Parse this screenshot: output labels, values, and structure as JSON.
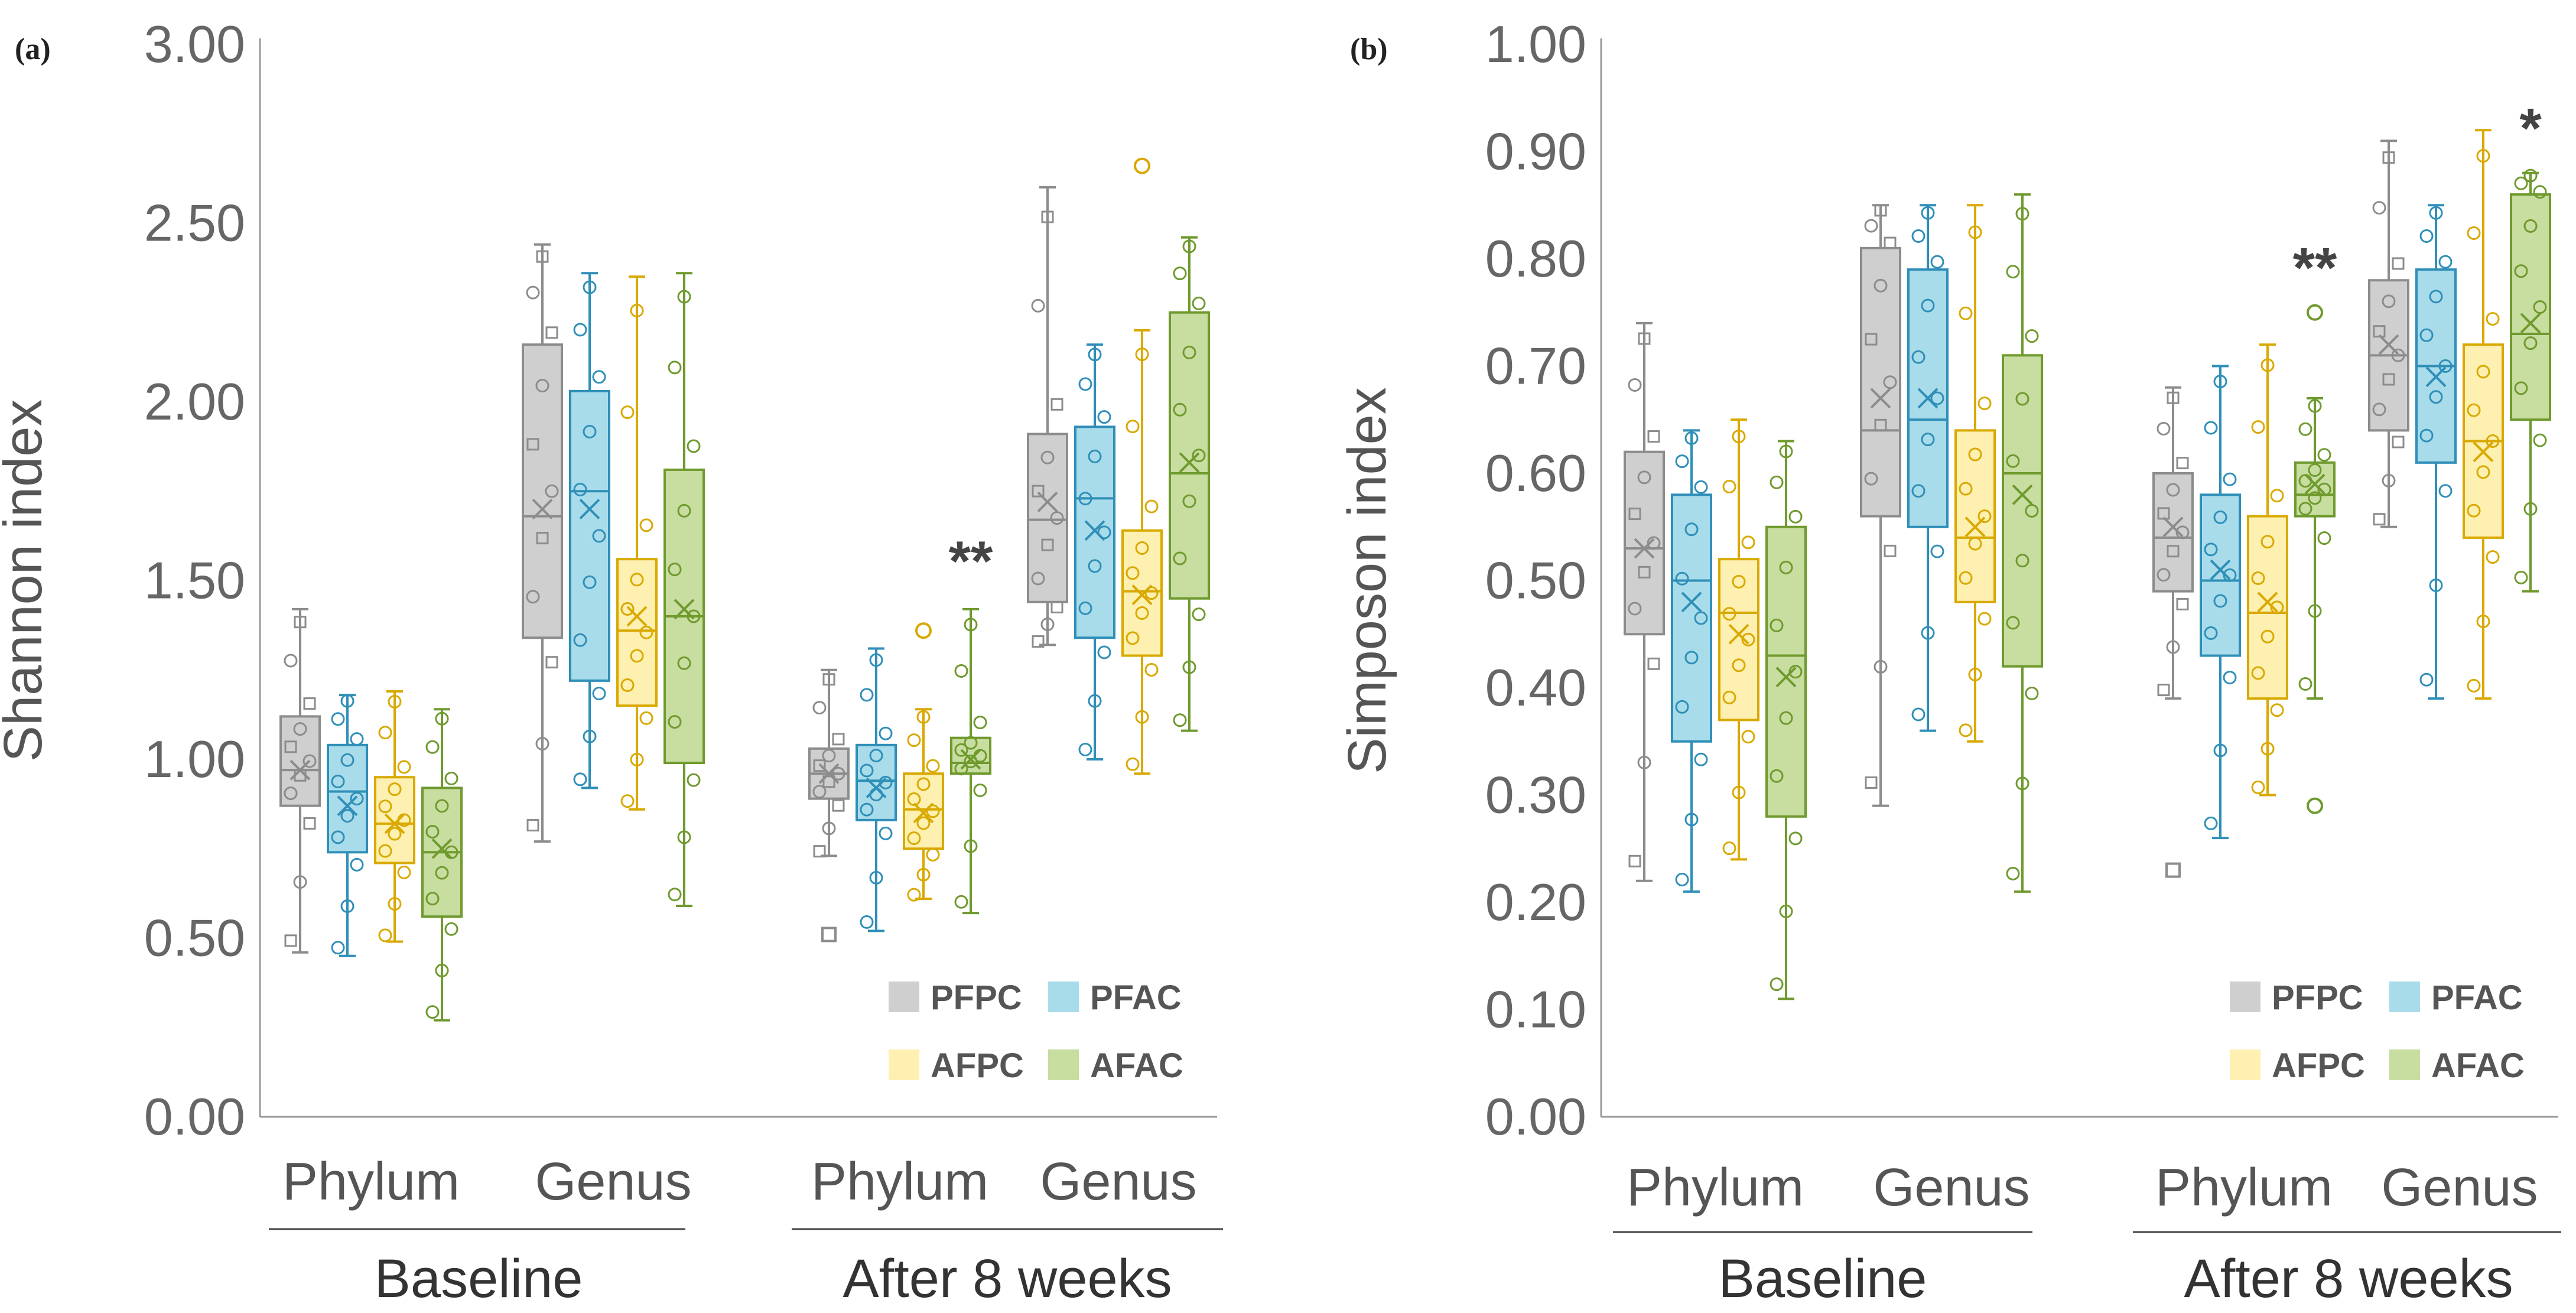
{
  "colors": {
    "PFPC": {
      "fill": "#cfcfcf",
      "stroke": "#8c8c8c"
    },
    "PFAC": {
      "fill": "#a9dcea",
      "stroke": "#2f8fb8"
    },
    "AFPC": {
      "fill": "#fdf0b0",
      "stroke": "#d9a900"
    },
    "AFAC": {
      "fill": "#c8dda0",
      "stroke": "#6f9a2e"
    }
  },
  "chart_data": [
    {
      "panel": "(a)",
      "type": "box",
      "ylabel": "Shannon index",
      "ylim": [
        0,
        3
      ],
      "yticks": [
        "0.00",
        "0.50",
        "1.00",
        "1.50",
        "2.00",
        "2.50",
        "3.00"
      ],
      "series_names": [
        "PFPC",
        "PFAC",
        "AFPC",
        "AFAC"
      ],
      "groups": [
        {
          "label": "Phylum",
          "period": "Baseline",
          "boxes": [
            {
              "min": 0.46,
              "q1": 0.87,
              "median": 0.97,
              "q3": 1.12,
              "max": 1.42,
              "mean": 0.97
            },
            {
              "min": 0.45,
              "q1": 0.74,
              "median": 0.91,
              "q3": 1.04,
              "max": 1.18,
              "mean": 0.87
            },
            {
              "min": 0.49,
              "q1": 0.71,
              "median": 0.82,
              "q3": 0.95,
              "max": 1.19,
              "mean": 0.82
            },
            {
              "min": 0.27,
              "q1": 0.56,
              "median": 0.74,
              "q3": 0.92,
              "max": 1.14,
              "mean": 0.75
            }
          ]
        },
        {
          "label": "Genus",
          "period": "Baseline",
          "boxes": [
            {
              "min": 0.77,
              "q1": 1.34,
              "median": 1.68,
              "q3": 2.16,
              "max": 2.44,
              "mean": 1.7
            },
            {
              "min": 0.92,
              "q1": 1.22,
              "median": 1.75,
              "q3": 2.03,
              "max": 2.36,
              "mean": 1.7
            },
            {
              "min": 0.86,
              "q1": 1.15,
              "median": 1.36,
              "q3": 1.56,
              "max": 2.35,
              "mean": 1.4
            },
            {
              "min": 0.59,
              "q1": 0.99,
              "median": 1.4,
              "q3": 1.81,
              "max": 2.36,
              "mean": 1.42
            }
          ]
        },
        {
          "label": "Phylum",
          "period": "After 8 weeks",
          "boxes": [
            {
              "min": 0.73,
              "q1": 0.89,
              "median": 0.96,
              "q3": 1.03,
              "max": 1.25,
              "mean": 0.96
            },
            {
              "min": 0.52,
              "q1": 0.83,
              "median": 0.94,
              "q3": 1.04,
              "max": 1.31,
              "mean": 0.92
            },
            {
              "min": 0.61,
              "q1": 0.75,
              "median": 0.86,
              "q3": 0.96,
              "max": 1.14,
              "mean": 0.85
            },
            {
              "min": 0.57,
              "q1": 0.96,
              "median": 0.99,
              "q3": 1.06,
              "max": 1.42,
              "mean": 1.0
            }
          ]
        },
        {
          "label": "Genus",
          "period": "After 8 weeks",
          "boxes": [
            {
              "min": 1.32,
              "q1": 1.44,
              "median": 1.67,
              "q3": 1.91,
              "max": 2.6,
              "mean": 1.72
            },
            {
              "min": 1.0,
              "q1": 1.34,
              "median": 1.73,
              "q3": 1.93,
              "max": 2.16,
              "mean": 1.64
            },
            {
              "min": 0.96,
              "q1": 1.29,
              "median": 1.47,
              "q3": 1.64,
              "max": 2.2,
              "mean": 1.46
            },
            {
              "min": 1.08,
              "q1": 1.45,
              "median": 1.8,
              "q3": 2.25,
              "max": 2.46,
              "mean": 1.83
            }
          ]
        }
      ],
      "outliers": [
        {
          "group": 2,
          "series": 0,
          "value": 0.51
        },
        {
          "group": 2,
          "series": 2,
          "value": 1.36
        },
        {
          "group": 3,
          "series": 2,
          "value": 2.66
        }
      ],
      "annotations": [
        {
          "group": 2,
          "series": 3,
          "text": "**",
          "value": 1.55
        }
      ],
      "period_labels": [
        "Baseline",
        "After 8 weeks"
      ],
      "legend": [
        "PFPC",
        "PFAC",
        "AFPC",
        "AFAC"
      ]
    },
    {
      "panel": "(b)",
      "type": "box",
      "ylabel": "Simposon index",
      "ylim": [
        0,
        1
      ],
      "yticks": [
        "0.00",
        "0.10",
        "0.20",
        "0.30",
        "0.40",
        "0.50",
        "0.60",
        "0.70",
        "0.80",
        "0.90",
        "1.00"
      ],
      "series_names": [
        "PFPC",
        "PFAC",
        "AFPC",
        "AFAC"
      ],
      "groups": [
        {
          "label": "Phylum",
          "period": "Baseline",
          "boxes": [
            {
              "min": 0.22,
              "q1": 0.45,
              "median": 0.53,
              "q3": 0.62,
              "max": 0.74,
              "mean": 0.53
            },
            {
              "min": 0.21,
              "q1": 0.35,
              "median": 0.5,
              "q3": 0.58,
              "max": 0.64,
              "mean": 0.48
            },
            {
              "min": 0.24,
              "q1": 0.37,
              "median": 0.47,
              "q3": 0.52,
              "max": 0.65,
              "mean": 0.45
            },
            {
              "min": 0.11,
              "q1": 0.28,
              "median": 0.43,
              "q3": 0.55,
              "max": 0.63,
              "mean": 0.41
            }
          ]
        },
        {
          "label": "Genus",
          "period": "Baseline",
          "boxes": [
            {
              "min": 0.29,
              "q1": 0.56,
              "median": 0.64,
              "q3": 0.81,
              "max": 0.85,
              "mean": 0.67
            },
            {
              "min": 0.36,
              "q1": 0.55,
              "median": 0.65,
              "q3": 0.79,
              "max": 0.85,
              "mean": 0.67
            },
            {
              "min": 0.35,
              "q1": 0.48,
              "median": 0.54,
              "q3": 0.64,
              "max": 0.85,
              "mean": 0.55
            },
            {
              "min": 0.21,
              "q1": 0.42,
              "median": 0.6,
              "q3": 0.71,
              "max": 0.86,
              "mean": 0.58
            }
          ]
        },
        {
          "label": "Phylum",
          "period": "After 8 weeks",
          "boxes": [
            {
              "min": 0.39,
              "q1": 0.49,
              "median": 0.54,
              "q3": 0.6,
              "max": 0.68,
              "mean": 0.55
            },
            {
              "min": 0.26,
              "q1": 0.43,
              "median": 0.5,
              "q3": 0.58,
              "max": 0.7,
              "mean": 0.51
            },
            {
              "min": 0.3,
              "q1": 0.39,
              "median": 0.47,
              "q3": 0.56,
              "max": 0.72,
              "mean": 0.48
            },
            {
              "min": 0.39,
              "q1": 0.56,
              "median": 0.58,
              "q3": 0.61,
              "max": 0.67,
              "mean": 0.59
            }
          ]
        },
        {
          "label": "Genus",
          "period": "After 8 weeks",
          "boxes": [
            {
              "min": 0.55,
              "q1": 0.64,
              "median": 0.71,
              "q3": 0.78,
              "max": 0.91,
              "mean": 0.72
            },
            {
              "min": 0.39,
              "q1": 0.61,
              "median": 0.7,
              "q3": 0.79,
              "max": 0.85,
              "mean": 0.69
            },
            {
              "min": 0.39,
              "q1": 0.54,
              "median": 0.63,
              "q3": 0.72,
              "max": 0.92,
              "mean": 0.62
            },
            {
              "min": 0.49,
              "q1": 0.65,
              "median": 0.73,
              "q3": 0.86,
              "max": 0.88,
              "mean": 0.74
            }
          ]
        }
      ],
      "outliers": [
        {
          "group": 2,
          "series": 0,
          "value": 0.23
        },
        {
          "group": 2,
          "series": 3,
          "value": 0.29
        },
        {
          "group": 2,
          "series": 3,
          "value": 0.75
        }
      ],
      "annotations": [
        {
          "group": 2,
          "series": 3,
          "text": "**",
          "value": 0.79
        },
        {
          "group": 3,
          "series": 3,
          "text": "*",
          "value": 0.92
        }
      ],
      "period_labels": [
        "Baseline",
        "After 8 weeks"
      ],
      "legend": [
        "PFPC",
        "PFAC",
        "AFPC",
        "AFAC"
      ]
    }
  ]
}
